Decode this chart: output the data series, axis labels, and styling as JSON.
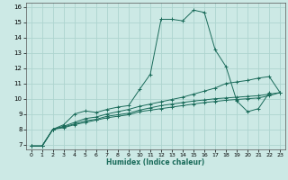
{
  "title": "",
  "xlabel": "Humidex (Indice chaleur)",
  "ylabel": "",
  "background_color": "#cce9e5",
  "grid_color": "#aed4cf",
  "line_color": "#1a6b5a",
  "xlim": [
    -0.5,
    23.5
  ],
  "ylim": [
    6.7,
    16.3
  ],
  "xticks": [
    0,
    1,
    2,
    3,
    4,
    5,
    6,
    7,
    8,
    9,
    10,
    11,
    12,
    13,
    14,
    15,
    16,
    17,
    18,
    19,
    20,
    21,
    22,
    23
  ],
  "yticks": [
    7,
    8,
    9,
    10,
    11,
    12,
    13,
    14,
    15,
    16
  ],
  "series": [
    {
      "x": [
        0,
        1,
        2,
        3,
        4,
        5,
        6,
        7,
        8,
        9,
        10,
        11,
        12,
        13,
        14,
        15,
        16,
        17,
        18,
        19,
        20,
        21,
        22
      ],
      "y": [
        6.9,
        6.9,
        8.0,
        8.3,
        9.0,
        9.2,
        9.1,
        9.3,
        9.45,
        9.55,
        10.6,
        11.6,
        15.2,
        15.2,
        15.1,
        15.8,
        15.65,
        13.2,
        12.1,
        9.85,
        9.15,
        9.35,
        10.4
      ]
    },
    {
      "x": [
        0,
        1,
        2,
        3,
        4,
        5,
        6,
        7,
        8,
        9,
        10,
        11,
        12,
        13,
        14,
        15,
        16,
        17,
        18,
        19,
        20,
        21,
        22,
        23
      ],
      "y": [
        6.9,
        6.9,
        8.0,
        8.2,
        8.45,
        8.7,
        8.8,
        9.0,
        9.15,
        9.3,
        9.5,
        9.65,
        9.8,
        9.95,
        10.1,
        10.3,
        10.5,
        10.7,
        11.0,
        11.1,
        11.2,
        11.35,
        11.45,
        10.4
      ]
    },
    {
      "x": [
        0,
        1,
        2,
        3,
        4,
        5,
        6,
        7,
        8,
        9,
        10,
        11,
        12,
        13,
        14,
        15,
        16,
        17,
        18,
        19,
        20,
        21,
        22,
        23
      ],
      "y": [
        6.9,
        6.9,
        8.0,
        8.15,
        8.35,
        8.55,
        8.65,
        8.85,
        8.95,
        9.05,
        9.25,
        9.4,
        9.55,
        9.65,
        9.75,
        9.85,
        9.92,
        10.0,
        10.05,
        10.1,
        10.15,
        10.2,
        10.3,
        10.4
      ]
    },
    {
      "x": [
        0,
        1,
        2,
        3,
        4,
        5,
        6,
        7,
        8,
        9,
        10,
        11,
        12,
        13,
        14,
        15,
        16,
        17,
        18,
        19,
        20,
        21,
        22,
        23
      ],
      "y": [
        6.9,
        6.9,
        8.0,
        8.1,
        8.3,
        8.45,
        8.6,
        8.75,
        8.85,
        8.95,
        9.15,
        9.25,
        9.35,
        9.45,
        9.55,
        9.65,
        9.75,
        9.82,
        9.9,
        9.95,
        10.0,
        10.05,
        10.2,
        10.4
      ]
    }
  ]
}
